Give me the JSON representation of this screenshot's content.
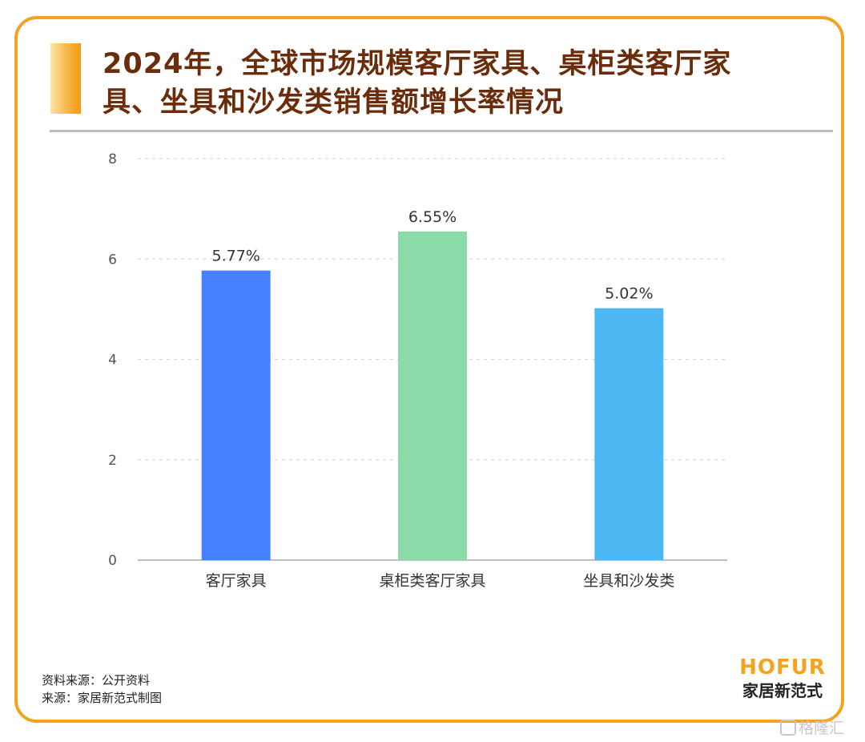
{
  "title": "2024年，全球市场规模客厅家具、桌柜类客厅家具、坐具和沙发类销售额增长率情况",
  "footer": {
    "source": "资料来源：公开资料",
    "credit": "来源：家居新范式制图"
  },
  "brand": {
    "en": "HOFUR",
    "cn": "家居新范式"
  },
  "watermark": "格隆汇",
  "colors": {
    "frame": "#f4a21f",
    "title": "#6a2c0a"
  },
  "chart_data": {
    "type": "bar",
    "categories": [
      "客厅家具",
      "桌柜类客厅家具",
      "坐具和沙发类"
    ],
    "values": [
      5.77,
      6.55,
      5.02
    ],
    "data_labels": [
      "5.77%",
      "6.55%",
      "5.02%"
    ],
    "colors": [
      "#4580ff",
      "#8adba8",
      "#4db7f4"
    ],
    "ylim": [
      0,
      8
    ],
    "yticks": [
      0,
      2,
      4,
      6,
      8
    ],
    "grid": true,
    "legend": "none"
  }
}
